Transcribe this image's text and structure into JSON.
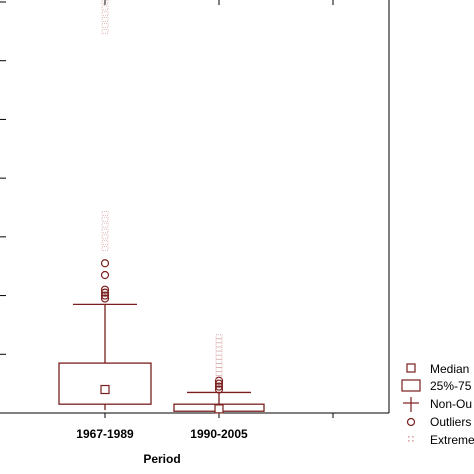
{
  "chart_data": {
    "type": "box",
    "xlabel": "Period",
    "ylabel": "",
    "title": "",
    "categories": [
      "1967-1989",
      "1990-2005"
    ],
    "ylim": [
      0,
      7
    ],
    "boxes": [
      {
        "category": "1967-1989",
        "median": 0.4,
        "q1": 0.15,
        "q3": 0.85,
        "whisker_low": 0.05,
        "whisker_high": 1.85,
        "outliers": [
          1.95,
          2.0,
          2.05,
          2.1,
          2.35,
          2.55
        ],
        "extremes": [
          2.8,
          2.9,
          3.0,
          3.1,
          3.2,
          3.3,
          3.4,
          6.5,
          6.6,
          6.7,
          6.8,
          6.9,
          7.0
        ]
      },
      {
        "category": "1990-2005",
        "median": 0.07,
        "q1": 0.03,
        "q3": 0.15,
        "whisker_low": 0.0,
        "whisker_high": 0.35,
        "outliers": [
          0.4,
          0.45,
          0.5,
          0.55
        ],
        "extremes": [
          0.6,
          0.67,
          0.74,
          0.81,
          0.88,
          0.95,
          1.02,
          1.09,
          1.16,
          1.23,
          1.3
        ]
      }
    ],
    "legend": {
      "position": "right",
      "entries": [
        "Median",
        "25%-75",
        "Non-Ou",
        "Outliers",
        "Extreme"
      ]
    },
    "grid": false
  },
  "colors": {
    "mark": "#7a1f1f",
    "extreme": "#d8a8a8",
    "axis": "#000000"
  }
}
